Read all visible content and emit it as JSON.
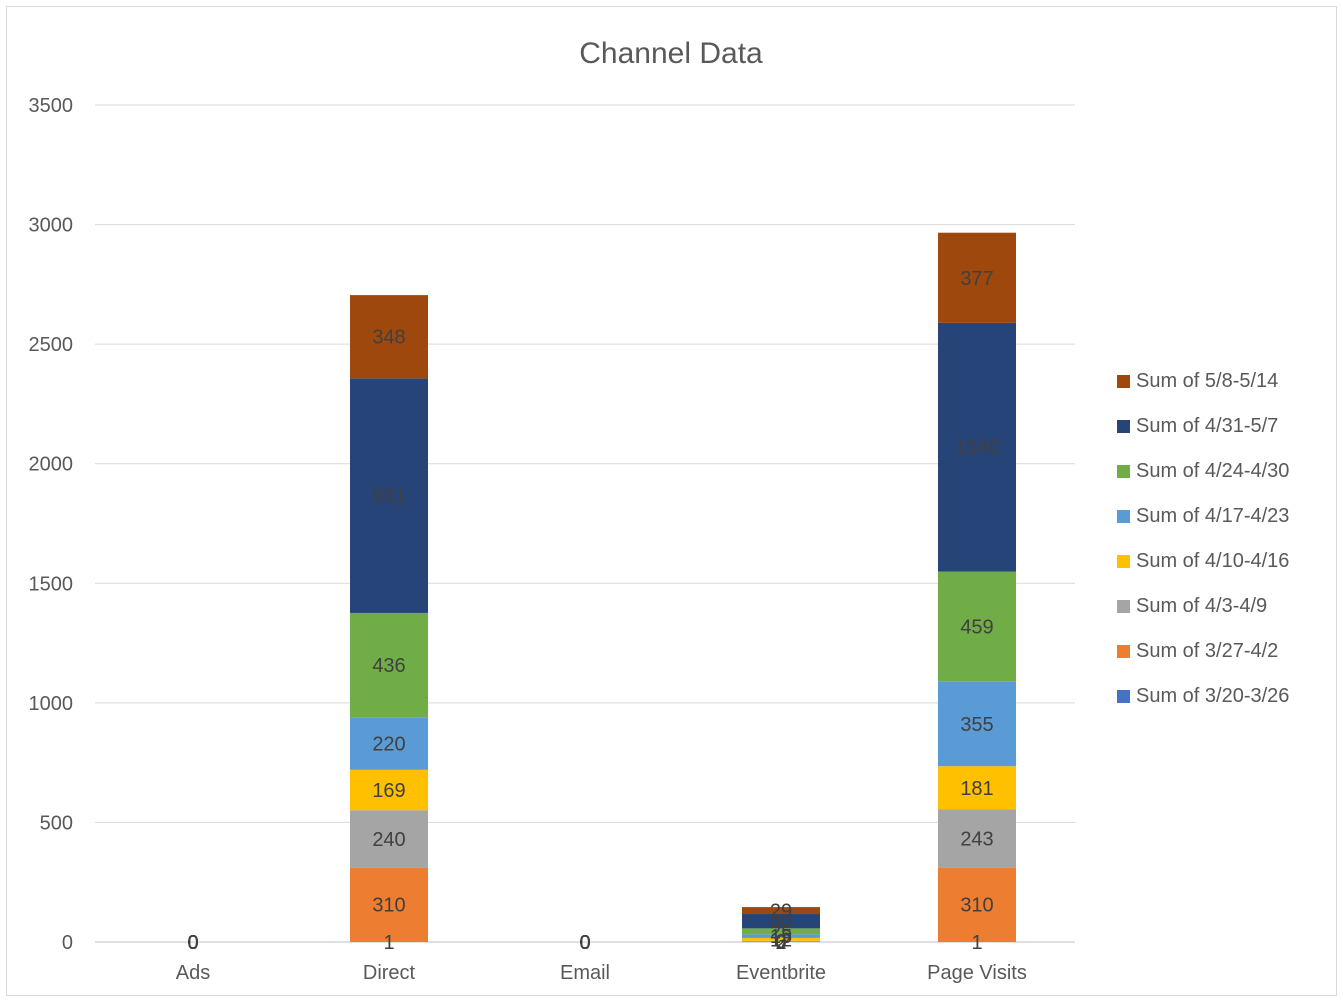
{
  "chart_data": {
    "type": "bar",
    "stacked": true,
    "title": "Channel Data",
    "xlabel": "",
    "ylabel": "",
    "ylim": [
      0,
      3500
    ],
    "yticks": [
      0,
      500,
      1000,
      1500,
      2000,
      2500,
      3000,
      3500
    ],
    "grid": true,
    "legend_position": "right",
    "categories": [
      "Ads",
      "Direct",
      "Email",
      "Eventbrite",
      "Page Visits"
    ],
    "series": [
      {
        "name": "Sum of 3/20-3/26",
        "color": "#4472C4",
        "values": [
          0,
          1,
          0,
          0,
          1
        ],
        "labels": [
          "0",
          "1",
          "0",
          "0",
          "1"
        ]
      },
      {
        "name": "Sum of 3/27-4/2",
        "color": "#ED7D31",
        "values": [
          0,
          310,
          0,
          2,
          310
        ],
        "labels": [
          "0",
          "310",
          "0",
          "2",
          "310"
        ]
      },
      {
        "name": "Sum of 4/3-4/9",
        "color": "#A5A5A5",
        "values": [
          0,
          240,
          0,
          3,
          243
        ],
        "labels": [
          "0",
          "240",
          "0",
          "3",
          "243"
        ]
      },
      {
        "name": "Sum of 4/10-4/16",
        "color": "#FFC000",
        "values": [
          0,
          169,
          0,
          12,
          181
        ],
        "labels": [
          "0",
          "169",
          "0",
          "12",
          "181"
        ]
      },
      {
        "name": "Sum of 4/17-4/23",
        "color": "#5B9BD5",
        "values": [
          0,
          220,
          0,
          15,
          355
        ],
        "labels": [
          "0",
          "220",
          "0",
          "15",
          "355"
        ]
      },
      {
        "name": "Sum of 4/24-4/30",
        "color": "#70AD47",
        "values": [
          0,
          436,
          0,
          25,
          459
        ],
        "labels": [
          "0",
          "436",
          "0",
          "25",
          "459"
        ]
      },
      {
        "name": "Sum of 4/31-5/7",
        "color": "#264478",
        "values": [
          0,
          981,
          0,
          60,
          1040
        ],
        "labels": [
          "0",
          "981",
          "0",
          "60",
          "1040"
        ]
      },
      {
        "name": "Sum of 5/8-5/14",
        "color": "#9E480E",
        "values": [
          0,
          348,
          0,
          29,
          377
        ],
        "labels": [
          "0",
          "348",
          "0",
          "29",
          "377"
        ]
      }
    ]
  }
}
